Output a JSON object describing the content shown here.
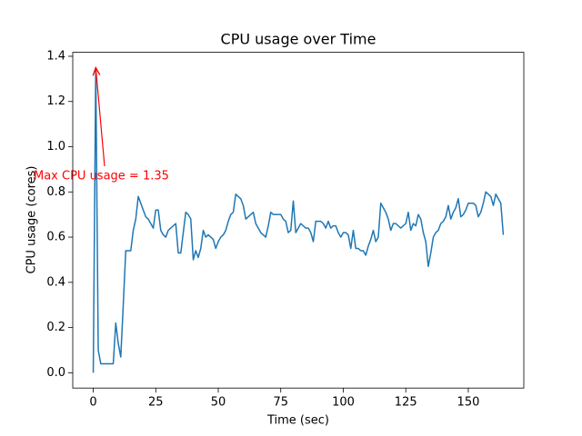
{
  "chart_data": {
    "type": "line",
    "title": "CPU usage over Time",
    "x_label": "Time (sec)",
    "y_label": "CPU usage (cores)",
    "color": "#1f77b4",
    "xlim": [
      -8.2,
      172.2
    ],
    "ylim": [
      -0.0675,
      1.4175
    ],
    "xticks": [
      0,
      25,
      50,
      75,
      100,
      125,
      150
    ],
    "yticks": [
      {
        "value": 0,
        "label": "0.0"
      },
      0.2,
      0.4,
      0.6,
      0.8,
      {
        "value": 1,
        "label": "1.0"
      },
      1.2,
      1.4
    ],
    "annotation": {
      "text": "Max CPU usage = 1.35",
      "color": "red"
    },
    "x": [
      0,
      1,
      2,
      3,
      4,
      5,
      6,
      7,
      8,
      9,
      10,
      11,
      12,
      13,
      14,
      15,
      16,
      17,
      18,
      19,
      20,
      21,
      22,
      23,
      24,
      25,
      26,
      27,
      28,
      29,
      30,
      31,
      32,
      33,
      34,
      35,
      36,
      37,
      38,
      39,
      40,
      41,
      42,
      43,
      44,
      45,
      46,
      47,
      48,
      49,
      50,
      51,
      52,
      53,
      54,
      55,
      56,
      57,
      58,
      59,
      60,
      61,
      62,
      63,
      64,
      65,
      66,
      67,
      68,
      69,
      70,
      71,
      72,
      73,
      74,
      75,
      76,
      77,
      78,
      79,
      80,
      81,
      82,
      83,
      84,
      85,
      86,
      87,
      88,
      89,
      90,
      91,
      92,
      93,
      94,
      95,
      96,
      97,
      98,
      99,
      100,
      101,
      102,
      103,
      104,
      105,
      106,
      107,
      108,
      109,
      110,
      111,
      112,
      113,
      114,
      115,
      116,
      117,
      118,
      119,
      120,
      121,
      122,
      123,
      124,
      125,
      126,
      127,
      128,
      129,
      130,
      131,
      132,
      133,
      134,
      135,
      136,
      137,
      138,
      139,
      140,
      141,
      142,
      143,
      144,
      145,
      146,
      147,
      148,
      149,
      150,
      151,
      152,
      153,
      154,
      155,
      156,
      157,
      158,
      159,
      160,
      161,
      162,
      163,
      164
    ],
    "values": [
      0,
      1.35,
      0.1,
      0.04,
      0.04,
      0.04,
      0.04,
      0.04,
      0.04,
      0.22,
      0.13,
      0.07,
      0.3,
      0.54,
      0.54,
      0.54,
      0.63,
      0.68,
      0.78,
      0.75,
      0.72,
      0.69,
      0.68,
      0.66,
      0.64,
      0.72,
      0.72,
      0.63,
      0.61,
      0.6,
      0.63,
      0.64,
      0.65,
      0.66,
      0.53,
      0.53,
      0.62,
      0.71,
      0.7,
      0.68,
      0.5,
      0.54,
      0.51,
      0.55,
      0.63,
      0.6,
      0.61,
      0.6,
      0.59,
      0.55,
      0.58,
      0.6,
      0.61,
      0.63,
      0.67,
      0.7,
      0.71,
      0.79,
      0.78,
      0.77,
      0.74,
      0.68,
      0.69,
      0.7,
      0.71,
      0.66,
      0.64,
      0.62,
      0.61,
      0.6,
      0.65,
      0.71,
      0.7,
      0.7,
      0.7,
      0.7,
      0.68,
      0.67,
      0.62,
      0.63,
      0.76,
      0.62,
      0.64,
      0.66,
      0.65,
      0.64,
      0.64,
      0.62,
      0.58,
      0.67,
      0.67,
      0.67,
      0.66,
      0.64,
      0.67,
      0.64,
      0.65,
      0.65,
      0.62,
      0.6,
      0.62,
      0.62,
      0.61,
      0.55,
      0.63,
      0.55,
      0.55,
      0.54,
      0.54,
      0.52,
      0.56,
      0.59,
      0.63,
      0.58,
      0.6,
      0.75,
      0.73,
      0.71,
      0.68,
      0.63,
      0.66,
      0.66,
      0.65,
      0.64,
      0.65,
      0.66,
      0.71,
      0.63,
      0.66,
      0.65,
      0.7,
      0.68,
      0.62,
      0.58,
      0.47,
      0.53,
      0.6,
      0.62,
      0.63,
      0.66,
      0.67,
      0.69,
      0.74,
      0.68,
      0.71,
      0.73,
      0.77,
      0.69,
      0.7,
      0.72,
      0.75,
      0.75,
      0.75,
      0.74,
      0.69,
      0.71,
      0.75,
      0.8,
      0.79,
      0.78,
      0.74,
      0.79,
      0.77,
      0.75,
      0.61
    ]
  }
}
